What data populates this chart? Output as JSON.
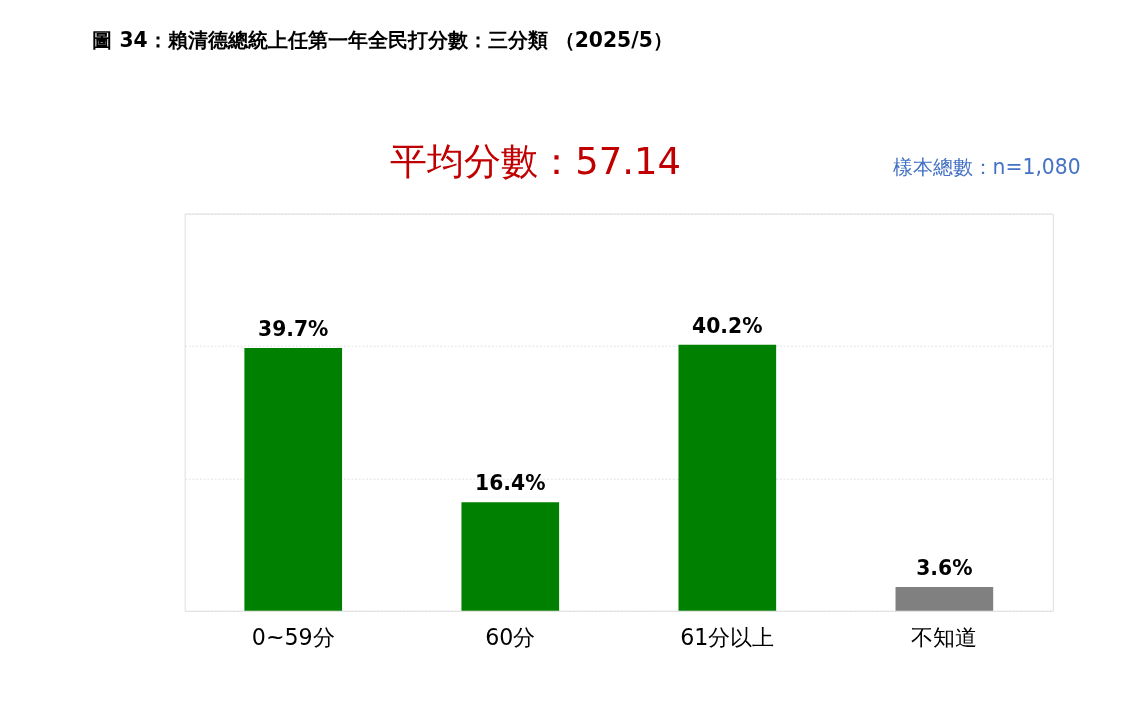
{
  "chart_data": {
    "type": "bar",
    "title": "圖 34：賴清德總統上任第一年全民打分數：三分類 （2025/5）",
    "subtitle": "平均分數：57.14",
    "annotations": [
      "樣本總數：n=1,080"
    ],
    "categories": [
      "0~59分",
      "60分",
      "61分以上",
      "不知道"
    ],
    "values": [
      39.7,
      16.4,
      40.2,
      3.6
    ],
    "colors": [
      "#008000",
      "#008000",
      "#008000",
      "#808080"
    ],
    "value_labels": [
      "39.7%",
      "16.4%",
      "40.2%",
      "3.6%"
    ],
    "ylim": [
      0,
      60
    ],
    "yticks": [
      {
        "value": 0,
        "label": null
      },
      {
        "value": 20,
        "label": null
      },
      {
        "value": 40,
        "label": null
      },
      {
        "value": 60,
        "label": null
      }
    ],
    "grid": "y",
    "tick_labels": "x"
  }
}
